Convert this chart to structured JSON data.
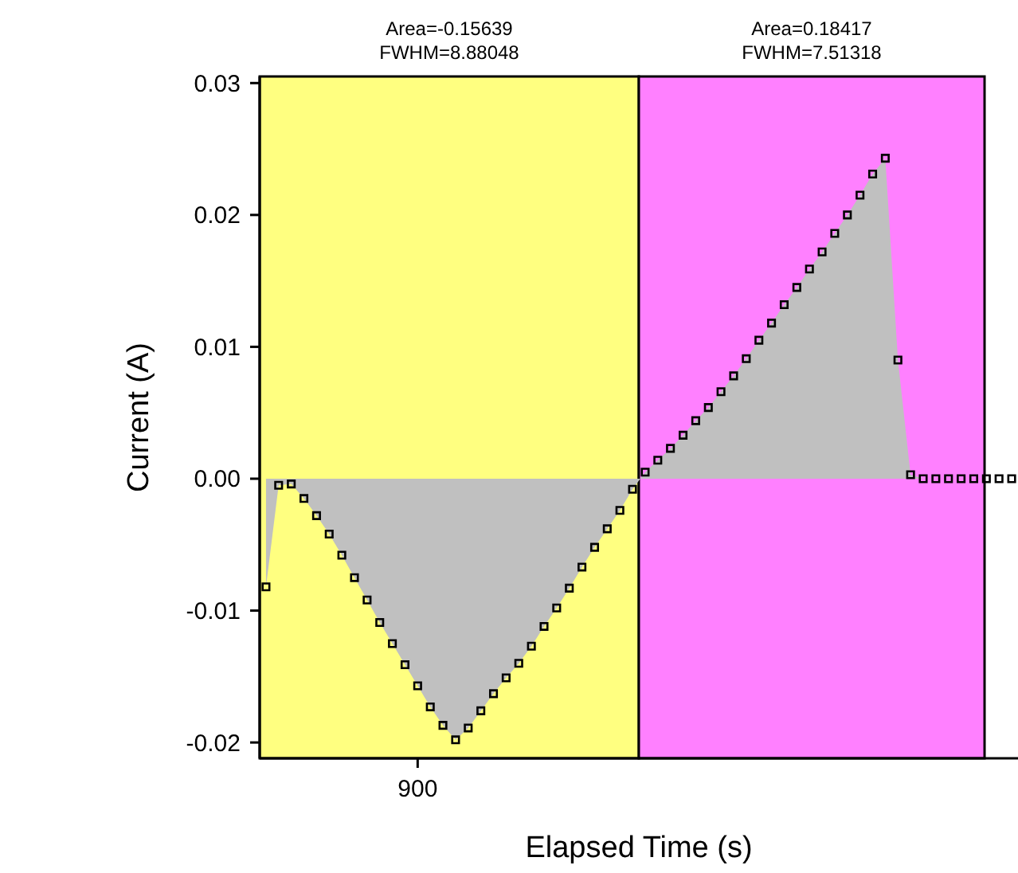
{
  "chart_data": {
    "type": "area",
    "xlabel": "Elapsed Time (s)",
    "ylabel": "Current (A)",
    "grid": false,
    "annotations": [
      "Area=-0.15639 FWHM=8.88048",
      "Area=0.18417 FWHM=7.51318"
    ],
    "ylim": [
      -0.0212,
      0.0305
    ],
    "yticks": [
      {
        "value": -0.02,
        "label": "-0.02"
      },
      {
        "value": -0.01,
        "label": "-0.01"
      },
      {
        "value": 0,
        "label": "0.00"
      },
      {
        "value": 0.01,
        "label": "0.01"
      },
      {
        "value": 0.02,
        "label": "0.02"
      },
      {
        "value": 0.03,
        "label": "0.03"
      }
    ],
    "categories": [
      null,
      null,
      null,
      null,
      null,
      null,
      null,
      null,
      null,
      null,
      null,
      null,
      "900",
      null,
      null,
      null,
      null,
      null,
      null,
      null,
      null,
      null,
      null,
      null,
      null,
      null,
      null,
      null,
      null,
      null,
      null,
      null,
      null,
      null,
      null,
      null,
      null,
      null,
      null,
      null,
      null,
      null,
      null,
      null,
      null,
      null,
      null,
      null,
      null,
      null,
      null,
      null,
      null,
      null,
      null,
      null,
      null,
      null,
      null,
      null
    ],
    "series": [
      {
        "color": "#c0c0c0",
        "marker": "none",
        "values": [
          -0.0082,
          -0.0005,
          -0.0004,
          -0.0015,
          -0.0028,
          -0.0042,
          -0.0058,
          -0.0075,
          -0.0092,
          -0.0109,
          -0.0125,
          -0.0141,
          -0.0157,
          -0.0173,
          -0.0187,
          -0.0198,
          -0.0189,
          -0.0176,
          -0.0163,
          -0.0151,
          -0.014,
          -0.0127,
          -0.0112,
          -0.0098,
          -0.0083,
          -0.0067,
          -0.0052,
          -0.0038,
          -0.0024,
          -0.0008,
          0.0005,
          0.0014,
          0.0023,
          0.0033,
          0.0044,
          0.0054,
          0.0066,
          0.0078,
          0.0091,
          0.0105,
          0.0118,
          0.0132,
          0.0145,
          0.0159,
          0.0172,
          0.0186,
          0.02,
          0.0215,
          0.0231,
          0.0243,
          0.009,
          0.0003,
          0,
          0,
          0,
          0,
          0,
          0,
          0,
          0
        ]
      },
      {
        "type": "scatter",
        "color": "#000000",
        "marker": "square",
        "values": [
          -0.0082,
          -0.0005,
          -0.0004,
          -0.0015,
          -0.0028,
          -0.0042,
          -0.0058,
          -0.0075,
          -0.0092,
          -0.0109,
          -0.0125,
          -0.0141,
          -0.0157,
          -0.0173,
          -0.0187,
          -0.0198,
          -0.0189,
          -0.0176,
          -0.0163,
          -0.0151,
          -0.014,
          -0.0127,
          -0.0112,
          -0.0098,
          -0.0083,
          -0.0067,
          -0.0052,
          -0.0038,
          -0.0024,
          -0.0008,
          0.0005,
          0.0014,
          0.0023,
          0.0033,
          0.0044,
          0.0054,
          0.0066,
          0.0078,
          0.0091,
          0.0105,
          0.0118,
          0.0132,
          0.0145,
          0.0159,
          0.0172,
          0.0186,
          0.02,
          0.0215,
          0.0231,
          0.0243,
          0.009,
          0.0003,
          0,
          0,
          0,
          0,
          0,
          0,
          0,
          0
        ]
      }
    ]
  }
}
